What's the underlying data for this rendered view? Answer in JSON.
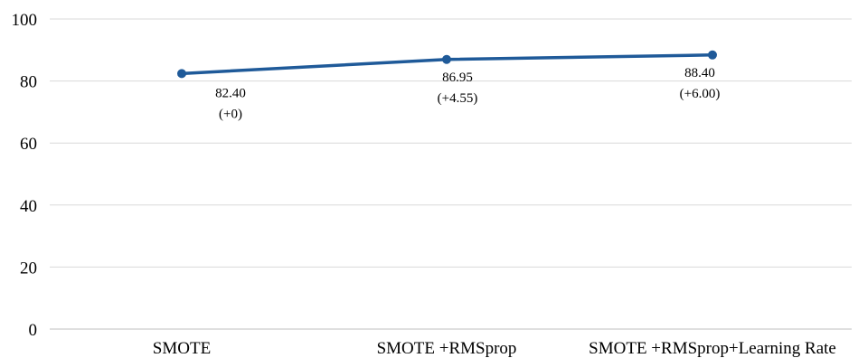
{
  "chart_data": {
    "type": "line",
    "title": "",
    "xlabel": "",
    "ylabel": "",
    "categories": [
      "SMOTE",
      "SMOTE +RMSprop",
      "SMOTE +RMSprop+Learning Rate"
    ],
    "series": [
      {
        "values": [
          82.4,
          86.95,
          88.4
        ],
        "labels": [
          [
            "82.40",
            "(+0)"
          ],
          [
            "86.95",
            "(+4.55)"
          ],
          [
            "88.40",
            "(+6.00)"
          ]
        ],
        "color": "#1f5a99"
      }
    ],
    "ylim": [
      0,
      100
    ],
    "yticks": [
      "0",
      "20",
      "40",
      "60",
      "80",
      "100"
    ],
    "grid": true,
    "legend": "none",
    "colors": {
      "gridline": "#d9d9d9",
      "axis": "#bfbfbf",
      "text": "#000000"
    }
  }
}
